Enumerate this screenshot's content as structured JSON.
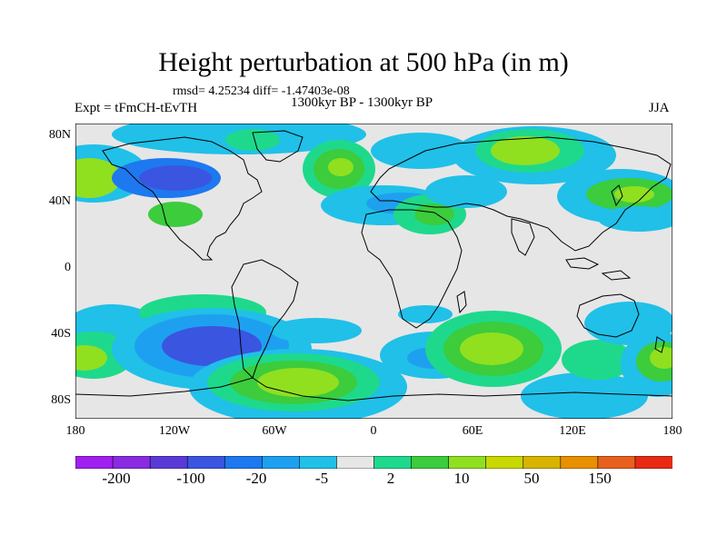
{
  "title": "Height perturbation at 500 hPa (in m)",
  "stats": "rmsd= 4.25234 diff= -1.47403e-08",
  "experiment": "Expt = tFmCH-tEvTH",
  "period": "1300kyr BP - 1300kyr BP",
  "season": "JJA",
  "lat_labels": [
    "80N",
    "40N",
    "0",
    "40S",
    "80S"
  ],
  "lon_labels": [
    "180",
    "120W",
    "60W",
    "0",
    "60E",
    "120E",
    "180"
  ],
  "colorbar": {
    "labels": [
      "-200",
      "-100",
      "-20",
      "-5",
      "2",
      "10",
      "50",
      "150"
    ],
    "colors": [
      "#a020f0",
      "#8a2be2",
      "#5a3ad6",
      "#3a55e0",
      "#1e78f0",
      "#1ea0f0",
      "#20c0e8",
      "#e6e6e6",
      "#1ed98c",
      "#3ccc3c",
      "#90e020",
      "#c8d800",
      "#d8b400",
      "#e89000",
      "#e8601e",
      "#e82a14"
    ]
  },
  "colors": {
    "background_field": "#e6e6e6",
    "land_outline": "#000000"
  }
}
